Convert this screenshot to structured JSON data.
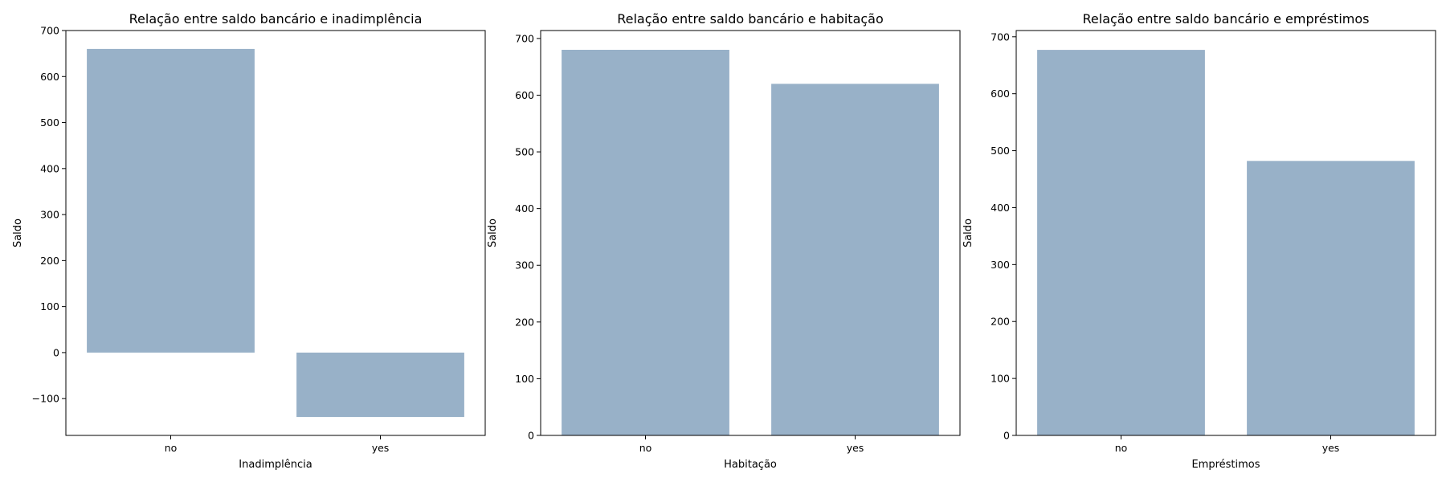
{
  "colors": {
    "bar": "#98b1c8",
    "axis": "#000000",
    "background": "#ffffff"
  },
  "chart_data": [
    {
      "type": "bar",
      "title": "Relação entre saldo bancário e inadimplência",
      "xlabel": "Inadimplência",
      "ylabel": "Saldo",
      "categories": [
        "no",
        "yes"
      ],
      "values": [
        660,
        -140
      ],
      "ylim": [
        -180,
        700
      ],
      "yticks": [
        -100,
        0,
        100,
        200,
        300,
        400,
        500,
        600,
        700
      ],
      "ytick_labels": [
        "−100",
        "0",
        "100",
        "200",
        "300",
        "400",
        "500",
        "600",
        "700"
      ],
      "grid": false,
      "legend": "none"
    },
    {
      "type": "bar",
      "title": "Relação entre saldo bancário e habitação",
      "xlabel": "Habitação",
      "ylabel": "Saldo",
      "categories": [
        "no",
        "yes"
      ],
      "values": [
        680,
        620
      ],
      "ylim": [
        0,
        714
      ],
      "yticks": [
        0,
        100,
        200,
        300,
        400,
        500,
        600,
        700
      ],
      "ytick_labels": [
        "0",
        "100",
        "200",
        "300",
        "400",
        "500",
        "600",
        "700"
      ],
      "grid": false,
      "legend": "none"
    },
    {
      "type": "bar",
      "title": "Relação entre saldo bancário e empréstimos",
      "xlabel": "Empréstimos",
      "ylabel": "Saldo",
      "categories": [
        "no",
        "yes"
      ],
      "values": [
        677,
        482
      ],
      "ylim": [
        0,
        711
      ],
      "yticks": [
        0,
        100,
        200,
        300,
        400,
        500,
        600,
        700
      ],
      "ytick_labels": [
        "0",
        "100",
        "200",
        "300",
        "400",
        "500",
        "600",
        "700"
      ],
      "grid": false,
      "legend": "none"
    }
  ]
}
